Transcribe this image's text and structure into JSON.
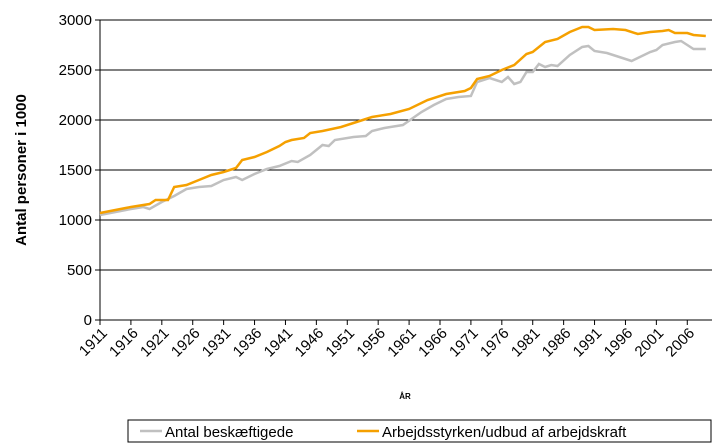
{
  "chart_data": {
    "type": "line",
    "xlabel": "ÅR",
    "ylabel": "Antal personer i 1000",
    "xlim": [
      1911,
      2010
    ],
    "ylim": [
      0,
      3000
    ],
    "xticks": [
      1911,
      1916,
      1921,
      1926,
      1931,
      1936,
      1941,
      1946,
      1951,
      1956,
      1961,
      1966,
      1971,
      1976,
      1981,
      1986,
      1991,
      1996,
      2001,
      2006
    ],
    "yticks": [
      0,
      500,
      1000,
      1500,
      2000,
      2500,
      3000
    ],
    "grid": true,
    "legend": "bottom",
    "series": [
      {
        "name": "Antal beskæftigede",
        "color": "#c0c0c0",
        "x": [
          1911,
          1916,
          1918,
          1919,
          1921,
          1923,
          1925,
          1927,
          1929,
          1931,
          1933,
          1934,
          1936,
          1938,
          1940,
          1942,
          1943,
          1945,
          1947,
          1948,
          1949,
          1952,
          1954,
          1955,
          1957,
          1960,
          1963,
          1965,
          1967,
          1969,
          1971,
          1972,
          1974,
          1976,
          1977,
          1978,
          1979,
          1980,
          1981,
          1982,
          1983,
          1984,
          1985,
          1987,
          1989,
          1990,
          1991,
          1993,
          1995,
          1997,
          1998,
          2000,
          2001,
          2002,
          2004,
          2005,
          2006,
          2007,
          2009
        ],
        "values": [
          1050,
          1110,
          1130,
          1110,
          1180,
          1240,
          1310,
          1330,
          1340,
          1400,
          1430,
          1400,
          1460,
          1510,
          1540,
          1590,
          1580,
          1650,
          1750,
          1740,
          1800,
          1830,
          1840,
          1890,
          1920,
          1950,
          2080,
          2150,
          2210,
          2230,
          2240,
          2380,
          2420,
          2380,
          2430,
          2360,
          2380,
          2480,
          2480,
          2560,
          2530,
          2550,
          2540,
          2650,
          2730,
          2740,
          2690,
          2670,
          2630,
          2590,
          2620,
          2680,
          2700,
          2750,
          2780,
          2790,
          2750,
          2710,
          2710
        ]
      },
      {
        "name": "Arbejdsstyrken/udbud af arbejdskraft",
        "color": "#f5a000",
        "x": [
          1911,
          1916,
          1919,
          1920,
          1922,
          1923,
          1925,
          1927,
          1929,
          1931,
          1933,
          1934,
          1936,
          1938,
          1940,
          1941,
          1942,
          1944,
          1945,
          1947,
          1950,
          1952,
          1955,
          1958,
          1961,
          1964,
          1967,
          1970,
          1971,
          1972,
          1974,
          1976,
          1978,
          1980,
          1981,
          1983,
          1985,
          1987,
          1989,
          1990,
          1991,
          1994,
          1996,
          1998,
          2000,
          2002,
          2003,
          2004,
          2006,
          2007,
          2009
        ],
        "values": [
          1070,
          1130,
          1160,
          1200,
          1200,
          1330,
          1350,
          1400,
          1450,
          1480,
          1520,
          1600,
          1630,
          1680,
          1740,
          1780,
          1800,
          1820,
          1870,
          1890,
          1930,
          1970,
          2030,
          2060,
          2110,
          2200,
          2260,
          2290,
          2320,
          2410,
          2440,
          2500,
          2550,
          2660,
          2680,
          2780,
          2810,
          2880,
          2930,
          2930,
          2900,
          2910,
          2900,
          2860,
          2880,
          2890,
          2900,
          2870,
          2870,
          2850,
          2840
        ]
      }
    ]
  }
}
